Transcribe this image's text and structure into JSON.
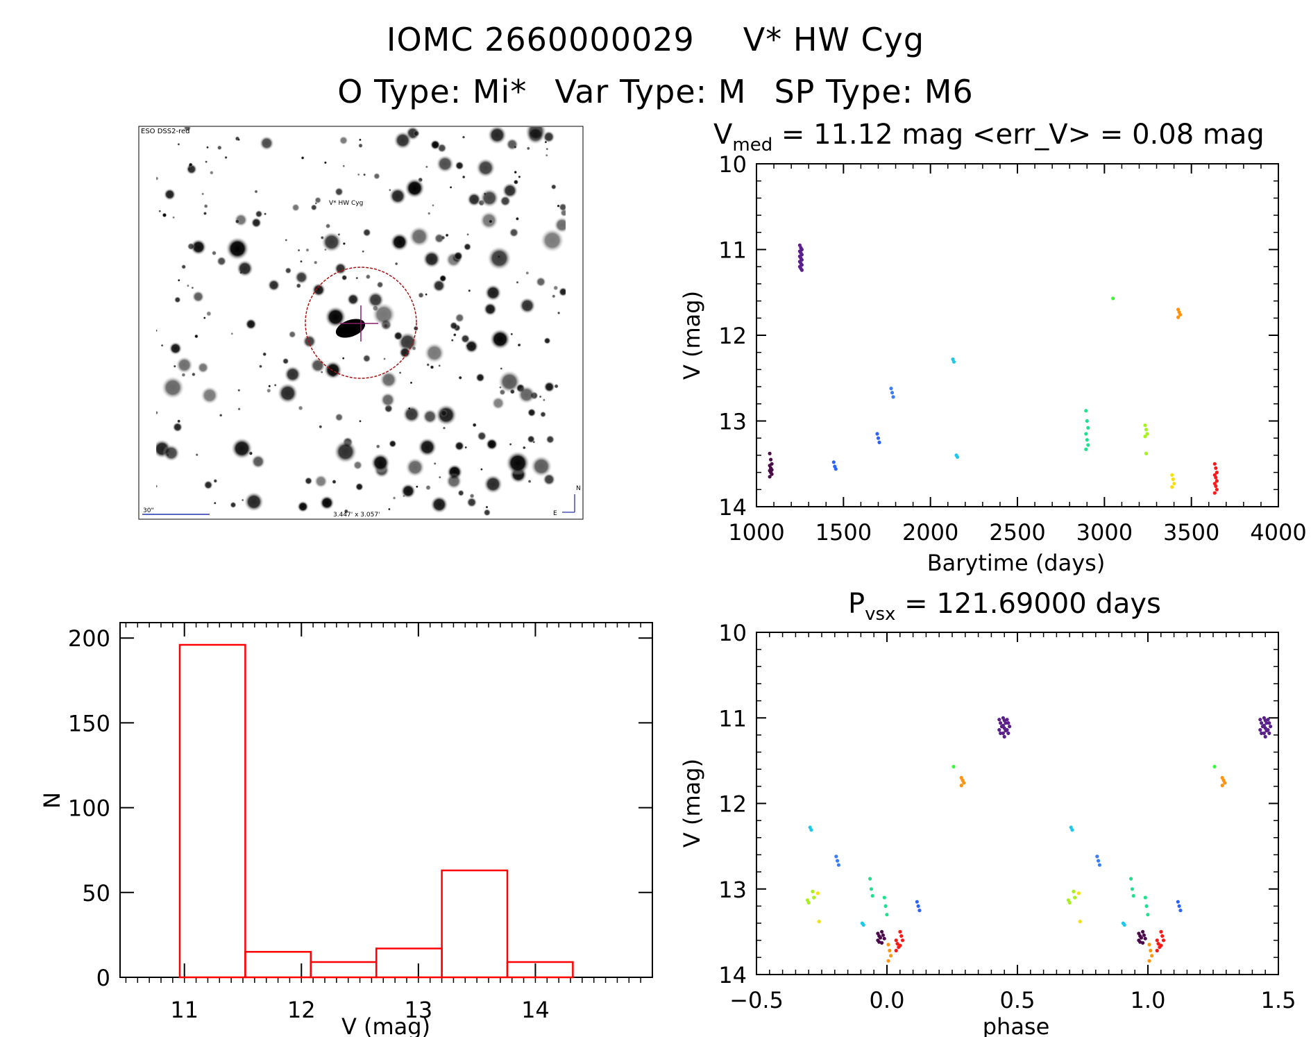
{
  "header": {
    "id_label": "IOMC 2660000029",
    "star_name": "V* HW Cyg",
    "otype": "O Type: Mi*",
    "vartype": "Var Type: M",
    "sptype": "SP Type: M6"
  },
  "finder": {
    "survey_label": "ESO DSS2-red",
    "target_label": "V* HW Cyg",
    "scale_label": "30\"",
    "fov_label": "3.447' x 3.057'",
    "north_label": "N",
    "east_label": "E"
  },
  "colors": {
    "hist": "#ff0000",
    "axis": "#000000",
    "seasons": [
      "#4a0b4a",
      "#5b1f8c",
      "#2b63ff",
      "#3b7dff",
      "#3fa3ff",
      "#1fc8e8",
      "#20e090",
      "#35ff35",
      "#a6f21b",
      "#f5df10",
      "#ff9410",
      "#ff1818"
    ]
  },
  "chart_data": [
    {
      "type": "scatter",
      "id": "light-curve",
      "title": "V_med = 11.12 mag <err_V> = 0.08 mag",
      "title_main": "V",
      "title_sub": "med",
      "title_rest": " = 11.12 mag <err_V> = 0.08 mag",
      "xlabel": "Barytime (days)",
      "ylabel": "V (mag)",
      "xlim": [
        1000,
        4000
      ],
      "ylim": [
        14,
        10
      ],
      "xticks": [
        1000,
        1500,
        2000,
        2500,
        3000,
        3500,
        4000
      ],
      "yticks": [
        10,
        11,
        12,
        13,
        14
      ],
      "groups": [
        {
          "x": 1082,
          "values": [
            13.38,
            13.45,
            13.5,
            13.52,
            13.55,
            13.57,
            13.58,
            13.6,
            13.62,
            13.65
          ],
          "color": 0
        },
        {
          "x": 1255,
          "values": [
            10.95,
            10.98,
            11.0,
            11.02,
            11.04,
            11.06,
            11.08,
            11.1,
            11.12,
            11.14,
            11.16,
            11.18,
            11.2,
            11.22,
            11.24
          ],
          "color": 1
        },
        {
          "x": 1450,
          "values": [
            13.48,
            13.53,
            13.56
          ],
          "color": 2
        },
        {
          "x": 1700,
          "values": [
            13.15,
            13.2,
            13.25
          ],
          "color": 2
        },
        {
          "x": 1780,
          "values": [
            12.62,
            12.67,
            12.72
          ],
          "color": 3
        },
        {
          "x": 2135,
          "values": [
            12.28,
            12.31
          ],
          "color": 5
        },
        {
          "x": 2155,
          "values": [
            13.4,
            13.42
          ],
          "color": 5
        },
        {
          "x": 2900,
          "values": [
            12.88,
            13.0,
            13.08,
            13.15,
            13.22,
            13.28,
            13.33
          ],
          "color": 6
        },
        {
          "x": 3055,
          "values": [
            11.57
          ],
          "color": 7
        },
        {
          "x": 3240,
          "values": [
            13.05,
            13.1,
            13.15,
            13.18,
            13.38
          ],
          "color": 8
        },
        {
          "x": 3395,
          "values": [
            13.63,
            13.68,
            13.73,
            13.77
          ],
          "color": 9
        },
        {
          "x": 3430,
          "values": [
            11.7,
            11.73,
            11.76,
            11.79
          ],
          "color": 10
        },
        {
          "x": 3640,
          "values": [
            13.5,
            13.55,
            13.6,
            13.63,
            13.66,
            13.7,
            13.73,
            13.76,
            13.8,
            13.84
          ],
          "color": 11
        }
      ]
    },
    {
      "type": "bar",
      "id": "histogram",
      "xlabel": "V (mag)",
      "ylabel": "N",
      "xlim": [
        10.45,
        15.0
      ],
      "ylim": [
        0,
        205
      ],
      "xticks": [
        11,
        12,
        13,
        14
      ],
      "yticks": [
        0,
        50,
        100,
        150,
        200
      ],
      "bins": [
        {
          "lo": 10.96,
          "hi": 11.52,
          "n": 196
        },
        {
          "lo": 11.52,
          "hi": 12.08,
          "n": 15
        },
        {
          "lo": 12.08,
          "hi": 12.64,
          "n": 9
        },
        {
          "lo": 12.64,
          "hi": 13.2,
          "n": 17
        },
        {
          "lo": 13.2,
          "hi": 13.76,
          "n": 63
        },
        {
          "lo": 13.76,
          "hi": 14.32,
          "n": 9
        }
      ]
    },
    {
      "type": "scatter",
      "id": "phased-curve",
      "title": "P_vsx = 121.69000 days",
      "title_main": "P",
      "title_sub": "vsx",
      "title_rest": " = 121.69000 days",
      "xlabel": "phase",
      "ylabel": "V (mag)",
      "xlim": [
        -0.5,
        1.5
      ],
      "ylim": [
        14,
        10
      ],
      "xticks": [
        "-0.5",
        "0.0",
        "0.5",
        "1.0",
        "1.5"
      ],
      "xtick_values": [
        -0.5,
        0.0,
        0.5,
        1.0,
        1.5
      ],
      "yticks": [
        10,
        11,
        12,
        13,
        14
      ],
      "groups": [
        {
          "x": -0.03,
          "values": [
            13.52,
            13.55,
            13.57,
            13.6,
            13.62
          ],
          "color": 0
        },
        {
          "x": -0.015,
          "values": [
            13.5,
            13.54,
            13.58,
            13.63
          ],
          "color": 0
        },
        {
          "x": 0.45,
          "values": [
            11.0,
            11.03,
            11.06,
            11.09,
            11.12,
            11.15,
            11.18,
            11.22
          ],
          "color": 1
        },
        {
          "x": 0.435,
          "values": [
            11.02,
            11.06,
            11.1,
            11.14,
            11.18
          ],
          "color": 1
        },
        {
          "x": 0.465,
          "values": [
            11.02,
            11.06,
            11.1,
            11.14,
            11.18
          ],
          "color": 1
        },
        {
          "x": 0.12,
          "values": [
            13.15,
            13.2,
            13.25
          ],
          "color": 2
        },
        {
          "x": -0.19,
          "values": [
            12.62,
            12.67,
            12.72
          ],
          "color": 3
        },
        {
          "x": -0.29,
          "values": [
            12.28,
            12.31
          ],
          "color": 5
        },
        {
          "x": -0.09,
          "values": [
            13.4,
            13.42
          ],
          "color": 5
        },
        {
          "x": -0.06,
          "values": [
            12.88,
            13.0,
            13.08
          ],
          "color": 6
        },
        {
          "x": -0.005,
          "values": [
            13.1,
            13.2,
            13.3
          ],
          "color": 6
        },
        {
          "x": 0.26,
          "values": [
            11.57
          ],
          "color": 7
        },
        {
          "x": -0.3,
          "values": [
            13.13,
            13.16
          ],
          "color": 8
        },
        {
          "x": -0.28,
          "values": [
            13.03,
            13.1
          ],
          "color": 8
        },
        {
          "x": -0.26,
          "values": [
            13.05,
            13.38
          ],
          "color": 9
        },
        {
          "x": 0.01,
          "values": [
            13.65,
            13.72,
            13.78,
            13.84
          ],
          "color": 10
        },
        {
          "x": 0.29,
          "values": [
            11.7,
            11.73,
            11.76,
            11.79
          ],
          "color": 10
        },
        {
          "x": 0.04,
          "values": [
            13.6,
            13.64,
            13.68,
            13.72
          ],
          "color": 11
        },
        {
          "x": 0.055,
          "values": [
            13.5,
            13.55,
            13.6,
            13.66
          ],
          "color": 11
        }
      ]
    }
  ]
}
